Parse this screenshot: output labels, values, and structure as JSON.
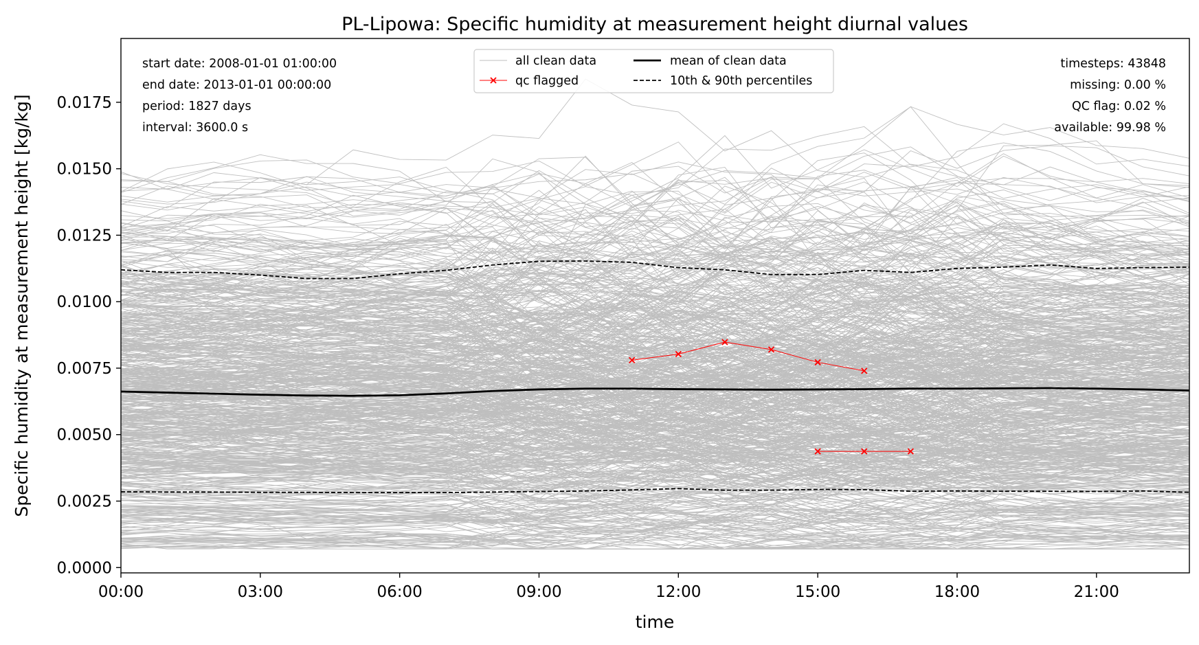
{
  "chart_data": {
    "type": "line",
    "title": "PL-Lipowa: Specific humidity at measurement height diurnal values",
    "xlabel": "time",
    "ylabel": "Specific humidity at measurement height [kg/kg]",
    "xlim": [
      0,
      23
    ],
    "ylim": [
      -0.0002,
      0.0199
    ],
    "x_ticks": [
      0,
      3,
      6,
      9,
      12,
      15,
      18,
      21
    ],
    "x_tick_labels": [
      "00:00",
      "03:00",
      "06:00",
      "09:00",
      "12:00",
      "15:00",
      "18:00",
      "21:00"
    ],
    "y_ticks": [
      0.0,
      0.0025,
      0.005,
      0.0075,
      0.01,
      0.0125,
      0.015,
      0.0175
    ],
    "y_tick_labels": [
      "0.0000",
      "0.0025",
      "0.0050",
      "0.0075",
      "0.0100",
      "0.0125",
      "0.0150",
      "0.0175"
    ],
    "hours": [
      0,
      1,
      2,
      3,
      4,
      5,
      6,
      7,
      8,
      9,
      10,
      11,
      12,
      13,
      14,
      15,
      16,
      17,
      18,
      19,
      20,
      21,
      22,
      23
    ],
    "colors": {
      "clean": "#bfbfbf",
      "mean": "#000000",
      "percentiles": "#000000",
      "qc": "#ff0000"
    },
    "info_left": [
      "start date: 2008-01-01 01:00:00",
      "end date: 2013-01-01 00:00:00",
      "period: 1827 days",
      "interval: 3600.0 s"
    ],
    "info_right": [
      "timesteps: 43848",
      "missing: 0.00 %",
      "QC flag: 0.02 %",
      "available: 99.98 %"
    ],
    "legend": {
      "placement": "upper center",
      "items": [
        {
          "label": "all clean data",
          "style": "clean"
        },
        {
          "label": "mean of clean data",
          "style": "mean"
        },
        {
          "label": "qc flagged",
          "style": "qc"
        },
        {
          "label": "10th & 90th percentiles",
          "style": "percentiles"
        }
      ]
    },
    "series": [
      {
        "name": "mean of clean data",
        "style": "mean",
        "values": [
          0.00662,
          0.00658,
          0.00654,
          0.0065,
          0.00647,
          0.00646,
          0.00648,
          0.00655,
          0.00664,
          0.0067,
          0.00673,
          0.00673,
          0.00671,
          0.0067,
          0.00669,
          0.0067,
          0.00671,
          0.00673,
          0.00673,
          0.00674,
          0.00675,
          0.00673,
          0.0067,
          0.00666
        ]
      },
      {
        "name": "10th percentile",
        "style": "percentiles",
        "values": [
          0.00285,
          0.00284,
          0.00284,
          0.00283,
          0.00283,
          0.00282,
          0.00282,
          0.00282,
          0.00284,
          0.00286,
          0.00288,
          0.00292,
          0.00297,
          0.00291,
          0.00291,
          0.00294,
          0.00293,
          0.00287,
          0.00288,
          0.00287,
          0.00287,
          0.00286,
          0.00288,
          0.00283
        ]
      },
      {
        "name": "90th percentile",
        "style": "percentiles",
        "values": [
          0.0112,
          0.0111,
          0.0111,
          0.011,
          0.01087,
          0.01087,
          0.01105,
          0.01118,
          0.01138,
          0.01152,
          0.01153,
          0.01148,
          0.01128,
          0.0112,
          0.01102,
          0.01102,
          0.01118,
          0.0111,
          0.01125,
          0.0113,
          0.01138,
          0.01125,
          0.01128,
          0.0113
        ]
      }
    ],
    "qc_flagged": [
      {
        "x": [
          11,
          12,
          13,
          14,
          15,
          16
        ],
        "values": [
          0.0078,
          0.00803,
          0.00848,
          0.0082,
          0.00772,
          0.0074
        ]
      },
      {
        "x": [
          15,
          16,
          17
        ],
        "values": [
          0.00437,
          0.00437,
          0.00437
        ]
      }
    ],
    "clean_data_envelope": {
      "count": 1827,
      "min_typical": 0.0007,
      "max_typical": 0.0185
    }
  }
}
